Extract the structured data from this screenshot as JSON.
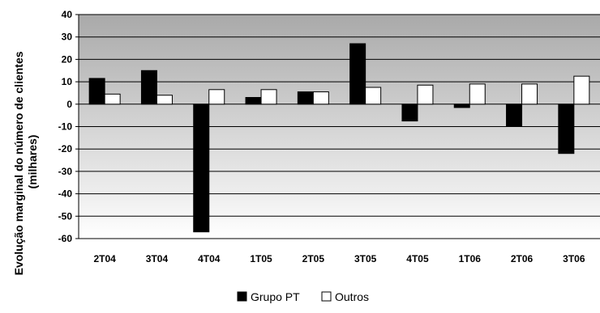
{
  "chart_data": {
    "type": "bar",
    "title": "",
    "xlabel": "",
    "ylabel": "Evolução marginal do número de clientes (milhares)",
    "ylabel_lines": [
      "Evolução marginal do número de clientes",
      "(milhares)"
    ],
    "ylim": [
      -60,
      40
    ],
    "yticks": [
      40,
      30,
      20,
      10,
      0,
      -10,
      -20,
      -30,
      -40,
      -50,
      -60
    ],
    "grid": true,
    "legend": "bottom",
    "categories": [
      "2T04",
      "3T04",
      "4T04",
      "1T05",
      "2T05",
      "3T05",
      "4T05",
      "1T06",
      "2T06",
      "3T06"
    ],
    "series": [
      {
        "name": "Grupo PT",
        "color": "#000000",
        "values": [
          11.5,
          15,
          -57,
          3,
          5.5,
          27,
          -7.5,
          -1.5,
          -10,
          -22
        ]
      },
      {
        "name": "Outros",
        "color": "#ffffff",
        "values": [
          4.5,
          4,
          6.5,
          6.5,
          5.5,
          7.5,
          8.5,
          9,
          9,
          12.5
        ]
      }
    ]
  }
}
